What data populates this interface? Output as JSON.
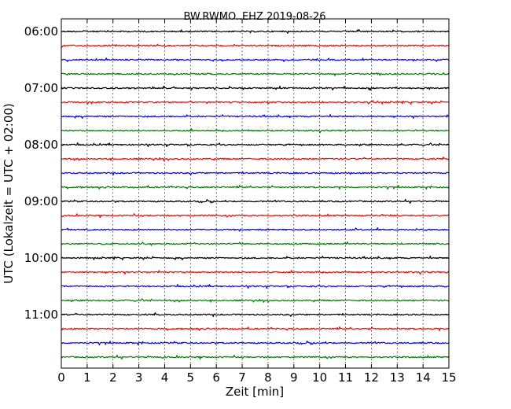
{
  "chart_data": {
    "type": "line",
    "title": "BW.RWMO..EHZ 2019-08-26",
    "xlabel": "Zeit  [min]",
    "ylabel": "UTC (Lokalzeit = UTC + 02:00)",
    "xlim": [
      0,
      15
    ],
    "x_ticks": [
      "0",
      "1",
      "2",
      "3",
      "4",
      "5",
      "6",
      "7",
      "8",
      "9",
      "10",
      "11",
      "12",
      "13",
      "14",
      "15"
    ],
    "y_tick_labels": [
      "06:00",
      "07:00",
      "08:00",
      "09:00",
      "10:00",
      "11:00"
    ],
    "grid": "vertical dotted lines at each minute",
    "trace_interval_minutes": 15,
    "traces": [
      {
        "start": "06:00",
        "color": "#000000"
      },
      {
        "start": "06:15",
        "color": "#ff0000"
      },
      {
        "start": "06:30",
        "color": "#0000ff"
      },
      {
        "start": "06:45",
        "color": "#008000"
      },
      {
        "start": "07:00",
        "color": "#000000"
      },
      {
        "start": "07:15",
        "color": "#ff0000"
      },
      {
        "start": "07:30",
        "color": "#0000ff"
      },
      {
        "start": "07:45",
        "color": "#008000"
      },
      {
        "start": "08:00",
        "color": "#000000"
      },
      {
        "start": "08:15",
        "color": "#ff0000"
      },
      {
        "start": "08:30",
        "color": "#0000ff"
      },
      {
        "start": "08:45",
        "color": "#008000"
      },
      {
        "start": "09:00",
        "color": "#000000"
      },
      {
        "start": "09:15",
        "color": "#ff0000"
      },
      {
        "start": "09:30",
        "color": "#0000ff"
      },
      {
        "start": "09:45",
        "color": "#008000"
      },
      {
        "start": "10:00",
        "color": "#000000"
      },
      {
        "start": "10:15",
        "color": "#ff0000"
      },
      {
        "start": "10:30",
        "color": "#0000ff"
      },
      {
        "start": "10:45",
        "color": "#008000"
      },
      {
        "start": "11:00",
        "color": "#000000"
      },
      {
        "start": "11:15",
        "color": "#ff0000"
      },
      {
        "start": "11:30",
        "color": "#0000ff"
      },
      {
        "start": "11:45",
        "color": "#008000"
      }
    ]
  }
}
